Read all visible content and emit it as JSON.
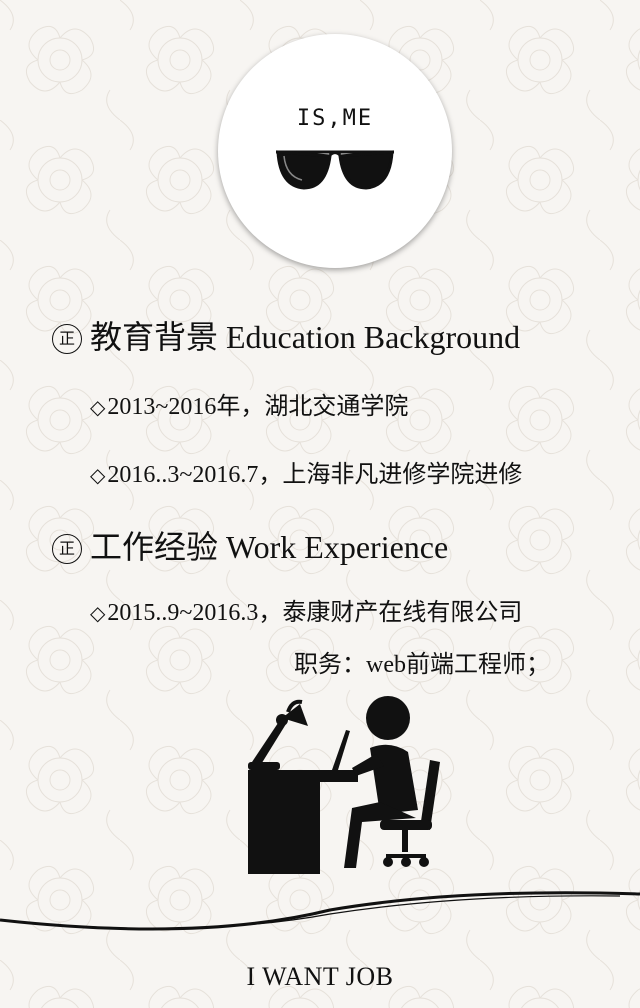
{
  "avatar": {
    "title": "IS,ME"
  },
  "education": {
    "mark": "正",
    "heading": "教育背景 Education Background",
    "items": [
      "2013~2016年，湖北交通学院",
      "2016..3~2016.7，上海非凡进修学院进修"
    ]
  },
  "work": {
    "mark": "正",
    "heading": "工作经验 Work Experience",
    "items": [
      "2015..9~2016.3，泰康财产在线有限公司"
    ],
    "position": "职务：web前端工程师；"
  },
  "footer": {
    "text": "I WANT JOB"
  },
  "icons": [
    "sunglasses-icon",
    "diamond-bullet-icon",
    "worker-at-desk-icon"
  ],
  "colors": {
    "background": "#f7f5f2",
    "ink": "#111111"
  }
}
